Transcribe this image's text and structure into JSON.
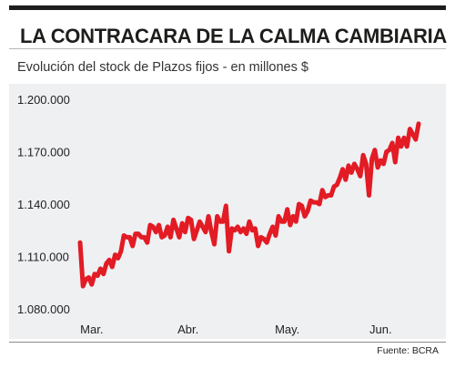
{
  "header": {
    "title": "LA CONTRACARA DE LA CALMA CAMBIARIA"
  },
  "chart_data": {
    "type": "line",
    "title": "LA CONTRACARA DE LA CALMA CAMBIARIA",
    "subtitle": "Evolución del stock de Plazos fijos - en millones $",
    "xlabel": "",
    "ylabel": "",
    "ylim": [
      1080000,
      1200000
    ],
    "y_ticks": [
      1080000,
      1110000,
      1140000,
      1170000,
      1200000
    ],
    "y_tick_labels": [
      "1.080.000",
      "1.110.000",
      "1.140.000",
      "1.170.000",
      "1.200.000"
    ],
    "x_tick_labels": [
      "Mar.",
      "Abr.",
      "May.",
      "Jun."
    ],
    "x_tick_index": [
      4,
      37,
      71,
      103
    ],
    "grid": false,
    "legend": "none",
    "line_color": "#e21b24",
    "series": [
      {
        "values": [
          1118000,
          1093000,
          1097000,
          1098000,
          1094000,
          1100000,
          1099000,
          1103000,
          1100000,
          1106000,
          1108000,
          1104000,
          1111000,
          1109000,
          1113000,
          1122000,
          1121000,
          1121000,
          1116000,
          1123000,
          1123000,
          1121000,
          1121000,
          1118000,
          1128000,
          1127000,
          1124000,
          1128000,
          1121000,
          1122000,
          1127000,
          1121000,
          1131000,
          1126000,
          1121000,
          1129000,
          1124000,
          1132000,
          1131000,
          1120000,
          1125000,
          1130000,
          1127000,
          1124000,
          1133000,
          1124000,
          1117000,
          1133000,
          1130000,
          1130000,
          1139000,
          1113000,
          1126000,
          1125000,
          1127000,
          1124000,
          1126000,
          1123000,
          1130000,
          1125000,
          1126000,
          1116000,
          1121000,
          1120000,
          1118000,
          1123000,
          1127000,
          1122000,
          1133000,
          1130000,
          1130000,
          1137000,
          1128000,
          1133000,
          1130000,
          1140000,
          1139000,
          1133000,
          1136000,
          1142000,
          1141000,
          1141000,
          1140000,
          1148000,
          1144000,
          1145000,
          1145000,
          1150000,
          1151000,
          1155000,
          1160000,
          1154000,
          1162000,
          1158000,
          1163000,
          1160000,
          1156000,
          1168000,
          1163000,
          1145000,
          1166000,
          1171000,
          1161000,
          1165000,
          1163000,
          1170000,
          1171000,
          1175000,
          1164000,
          1178000,
          1173000,
          1178000,
          1173000,
          1183000,
          1180000,
          1177000,
          1186000
        ]
      }
    ]
  },
  "footer": {
    "source": "Fuente: BCRA"
  }
}
